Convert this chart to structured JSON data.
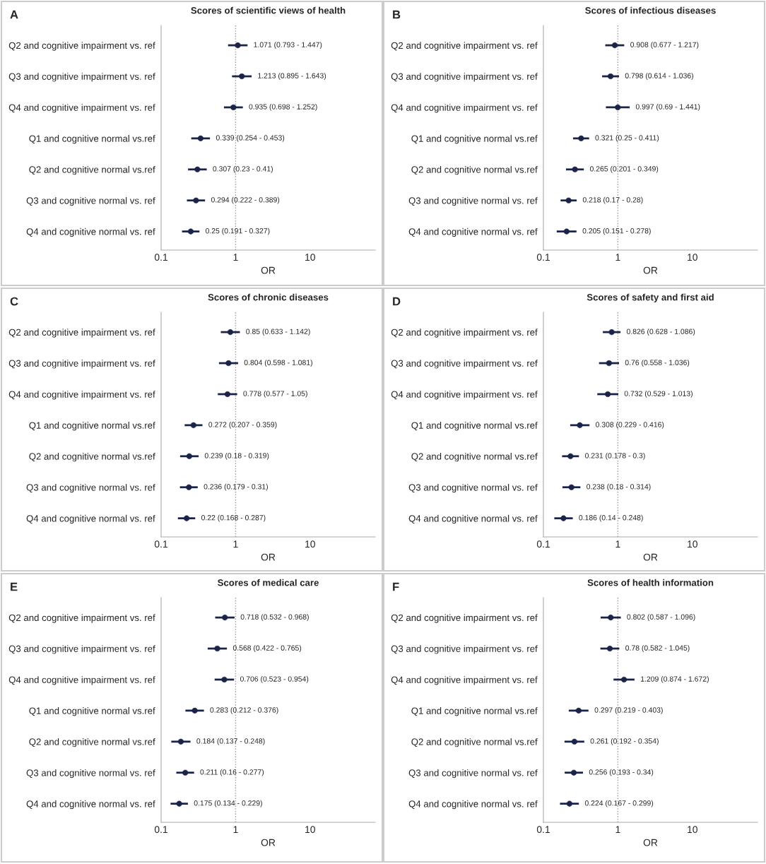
{
  "chart_data": [
    {
      "type": "scatter",
      "orientation": "horizontal",
      "title": "Scores of scientific views of health",
      "xlabel": "OR",
      "annotations": [
        "A"
      ],
      "categories": [
        "Q2 and cognitive impairment vs. ref",
        "Q3 and cognitive impairment vs. ref",
        "Q4 and cognitive impairment vs. ref",
        "Q1 and cognitive normal vs.ref",
        "Q2 and cognitive normal vs.ref",
        "Q3 and cognitive normal vs. ref",
        "Q4 and cognitive normal vs. ref"
      ],
      "values": [
        1.071,
        1.213,
        0.935,
        0.339,
        0.307,
        0.294,
        0.25
      ],
      "errors": [
        [
          0.793,
          1.447
        ],
        [
          0.895,
          1.643
        ],
        [
          0.698,
          1.252
        ],
        [
          0.254,
          0.453
        ],
        [
          0.23,
          0.41
        ],
        [
          0.222,
          0.389
        ],
        [
          0.191,
          0.327
        ]
      ],
      "value_labels": [
        "1.071 (0.793 - 1.447)",
        "1.213 (0.895 - 1.643)",
        "0.935 (0.698 - 1.252)",
        "0.339 (0.254 - 0.453)",
        "0.307 (0.23 - 0.41)",
        "0.294 (0.222 - 0.389)",
        "0.25 (0.191 - 0.327)"
      ],
      "color": "#1b2448",
      "marker": "circle",
      "log": "x",
      "xlim": [
        0.1,
        75
      ],
      "xticks": [
        0.1,
        1,
        10
      ],
      "ref_lines": [
        {
          "axis": "x",
          "value": 1,
          "color": "#999999",
          "line_style": "dotted"
        }
      ],
      "grid": false
    },
    {
      "type": "scatter",
      "orientation": "horizontal",
      "title": "Scores of infectious diseases",
      "xlabel": "OR",
      "annotations": [
        "B"
      ],
      "categories": [
        "Q2 and cognitive impairment vs. ref",
        "Q3 and cognitive impairment vs. ref",
        "Q4 and cognitive impairment vs. ref",
        "Q1 and cognitive normal vs.ref",
        "Q2 and cognitive normal vs.ref",
        "Q3 and cognitive normal vs. ref",
        "Q4 and cognitive normal vs. ref"
      ],
      "values": [
        0.908,
        0.798,
        0.997,
        0.321,
        0.265,
        0.218,
        0.205
      ],
      "errors": [
        [
          0.677,
          1.217
        ],
        [
          0.614,
          1.036
        ],
        [
          0.69,
          1.441
        ],
        [
          0.25,
          0.411
        ],
        [
          0.201,
          0.349
        ],
        [
          0.17,
          0.28
        ],
        [
          0.151,
          0.278
        ]
      ],
      "value_labels": [
        "0.908 (0.677 - 1.217)",
        "0.798 (0.614 - 1.036)",
        "0.997 (0.69 - 1.441)",
        "0.321 (0.25 - 0.411)",
        "0.265 (0.201 - 0.349)",
        "0.218 (0.17 - 0.28)",
        "0.205 (0.151 - 0.278)"
      ],
      "color": "#1b2448",
      "marker": "circle",
      "log": "x",
      "xlim": [
        0.1,
        75
      ],
      "xticks": [
        0.1,
        1,
        10
      ],
      "ref_lines": [
        {
          "axis": "x",
          "value": 1,
          "color": "#999999",
          "line_style": "dotted"
        }
      ],
      "grid": false
    },
    {
      "type": "scatter",
      "orientation": "horizontal",
      "title": "Scores of chronic diseases",
      "xlabel": "OR",
      "annotations": [
        "C"
      ],
      "categories": [
        "Q2 and cognitive impairment vs. ref",
        "Q3 and cognitive impairment vs. ref",
        "Q4 and cognitive impairment vs. ref",
        "Q1 and cognitive normal vs.ref",
        "Q2 and cognitive normal vs.ref",
        "Q3 and cognitive normal vs. ref",
        "Q4 and cognitive normal vs. ref"
      ],
      "values": [
        0.85,
        0.804,
        0.778,
        0.272,
        0.239,
        0.236,
        0.22
      ],
      "errors": [
        [
          0.633,
          1.142
        ],
        [
          0.598,
          1.081
        ],
        [
          0.577,
          1.05
        ],
        [
          0.207,
          0.359
        ],
        [
          0.18,
          0.319
        ],
        [
          0.179,
          0.31
        ],
        [
          0.168,
          0.287
        ]
      ],
      "value_labels": [
        "0.85 (0.633 - 1.142)",
        "0.804 (0.598 - 1.081)",
        "0.778 (0.577 - 1.05)",
        "0.272 (0.207 - 0.359)",
        "0.239 (0.18 - 0.319)",
        "0.236 (0.179 - 0.31)",
        "0.22 (0.168 - 0.287)"
      ],
      "color": "#1b2448",
      "marker": "circle",
      "log": "x",
      "xlim": [
        0.1,
        75
      ],
      "xticks": [
        0.1,
        1,
        10
      ],
      "ref_lines": [
        {
          "axis": "x",
          "value": 1,
          "color": "#999999",
          "line_style": "dotted"
        }
      ],
      "grid": false
    },
    {
      "type": "scatter",
      "orientation": "horizontal",
      "title": "Scores of safety and first aid",
      "xlabel": "OR",
      "annotations": [
        "D"
      ],
      "categories": [
        "Q2 and cognitive impairment vs. ref",
        "Q3 and cognitive impairment vs. ref",
        "Q4 and cognitive impairment vs. ref",
        "Q1 and cognitive normal vs.ref",
        "Q2 and cognitive normal vs.ref",
        "Q3 and cognitive normal vs. ref",
        "Q4 and cognitive normal vs. ref"
      ],
      "values": [
        0.826,
        0.76,
        0.732,
        0.308,
        0.231,
        0.238,
        0.186
      ],
      "errors": [
        [
          0.628,
          1.086
        ],
        [
          0.558,
          1.036
        ],
        [
          0.529,
          1.013
        ],
        [
          0.229,
          0.416
        ],
        [
          0.178,
          0.3
        ],
        [
          0.18,
          0.314
        ],
        [
          0.14,
          0.248
        ]
      ],
      "value_labels": [
        "0.826 (0.628 - 1.086)",
        "0.76 (0.558 - 1.036)",
        "0.732 (0.529 - 1.013)",
        "0.308 (0.229 - 0.416)",
        "0.231 (0.178 - 0.3)",
        "0.238 (0.18 - 0.314)",
        "0.186 (0.14 - 0.248)"
      ],
      "color": "#1b2448",
      "marker": "circle",
      "log": "x",
      "xlim": [
        0.1,
        75
      ],
      "xticks": [
        0.1,
        1,
        10
      ],
      "ref_lines": [
        {
          "axis": "x",
          "value": 1,
          "color": "#999999",
          "line_style": "dotted"
        }
      ],
      "grid": false
    },
    {
      "type": "scatter",
      "orientation": "horizontal",
      "title": "Scores of medical care",
      "xlabel": "OR",
      "annotations": [
        "E"
      ],
      "categories": [
        "Q2 and cognitive impairment vs. ref",
        "Q3 and cognitive impairment vs. ref",
        "Q4 and cognitive impairment vs. ref",
        "Q1 and cognitive normal vs.ref",
        "Q2 and cognitive normal vs.ref",
        "Q3 and cognitive normal vs. ref",
        "Q4 and cognitive normal vs. ref"
      ],
      "values": [
        0.718,
        0.568,
        0.706,
        0.283,
        0.184,
        0.211,
        0.175
      ],
      "errors": [
        [
          0.532,
          0.968
        ],
        [
          0.422,
          0.765
        ],
        [
          0.523,
          0.954
        ],
        [
          0.212,
          0.376
        ],
        [
          0.137,
          0.248
        ],
        [
          0.16,
          0.277
        ],
        [
          0.134,
          0.229
        ]
      ],
      "value_labels": [
        "0.718 (0.532 - 0.968)",
        "0.568 (0.422 - 0.765)",
        "0.706 (0.523 - 0.954)",
        "0.283 (0.212 - 0.376)",
        "0.184 (0.137 - 0.248)",
        "0.211 (0.16 - 0.277)",
        "0.175 (0.134 - 0.229)"
      ],
      "color": "#1b2448",
      "marker": "circle",
      "log": "x",
      "xlim": [
        0.1,
        75
      ],
      "xticks": [
        0.1,
        1,
        10
      ],
      "ref_lines": [
        {
          "axis": "x",
          "value": 1,
          "color": "#999999",
          "line_style": "dotted"
        }
      ],
      "grid": false
    },
    {
      "type": "scatter",
      "orientation": "horizontal",
      "title": "Scores of health information",
      "xlabel": "OR",
      "annotations": [
        "F"
      ],
      "categories": [
        "Q2 and cognitive impairment vs. ref",
        "Q3 and cognitive impairment vs. ref",
        "Q4 and cognitive impairment vs. ref",
        "Q1 and cognitive normal vs.ref",
        "Q2 and cognitive normal vs.ref",
        "Q3 and cognitive normal vs. ref",
        "Q4 and cognitive normal vs. ref"
      ],
      "values": [
        0.802,
        0.78,
        1.209,
        0.297,
        0.261,
        0.256,
        0.224
      ],
      "errors": [
        [
          0.587,
          1.096
        ],
        [
          0.582,
          1.045
        ],
        [
          0.874,
          1.672
        ],
        [
          0.219,
          0.403
        ],
        [
          0.192,
          0.354
        ],
        [
          0.193,
          0.34
        ],
        [
          0.167,
          0.299
        ]
      ],
      "value_labels": [
        "0.802 (0.587 - 1.096)",
        "0.78 (0.582 - 1.045)",
        "1.209 (0.874 - 1.672)",
        "0.297 (0.219 - 0.403)",
        "0.261 (0.192 - 0.354)",
        "0.256 (0.193 - 0.34)",
        "0.224 (0.167 - 0.299)"
      ],
      "color": "#1b2448",
      "marker": "circle",
      "log": "x",
      "xlim": [
        0.1,
        75
      ],
      "xticks": [
        0.1,
        1,
        10
      ],
      "ref_lines": [
        {
          "axis": "x",
          "value": 1,
          "color": "#999999",
          "line_style": "dotted"
        }
      ],
      "grid": false
    }
  ]
}
